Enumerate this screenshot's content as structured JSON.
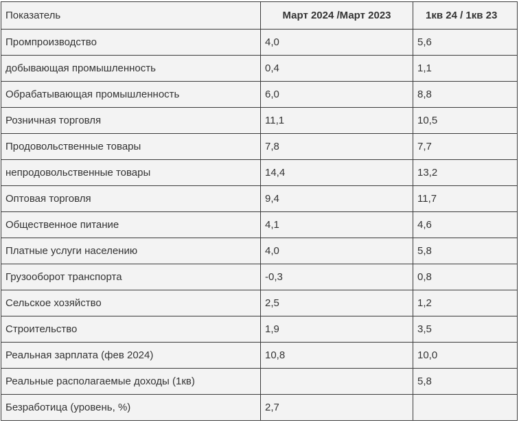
{
  "table": {
    "headers": [
      "Показатель",
      "Март 2024 /Март 2023",
      "1кв 24 / 1кв 23"
    ],
    "rows": [
      [
        "Промпроизводство",
        "4,0",
        "5,6"
      ],
      [
        "добывающая промышленность",
        "0,4",
        "1,1"
      ],
      [
        "Обрабатывающая промышленность",
        "6,0",
        "8,8"
      ],
      [
        "Розничная торговля",
        "11,1",
        "10,5"
      ],
      [
        "Продовольственные товары",
        "7,8",
        "7,7"
      ],
      [
        "непродовольственные товары",
        "14,4",
        "13,2"
      ],
      [
        "Оптовая торговля",
        "9,4",
        "11,7"
      ],
      [
        "Общественное питание",
        "4,1",
        "4,6"
      ],
      [
        "Платные услуги населению",
        "4,0",
        "5,8"
      ],
      [
        "Грузооборот транспорта",
        "-0,3",
        "0,8"
      ],
      [
        "Сельское хозяйство",
        "2,5",
        "1,2"
      ],
      [
        "Строительство",
        "1,9",
        "3,5"
      ],
      [
        "Реальная зарплата (фев 2024)",
        "10,8",
        "10,0"
      ],
      [
        "Реальные располагаемые доходы (1кв)",
        "",
        "5,8"
      ],
      [
        "Безработица (уровень, %)",
        "2,7",
        ""
      ]
    ]
  }
}
